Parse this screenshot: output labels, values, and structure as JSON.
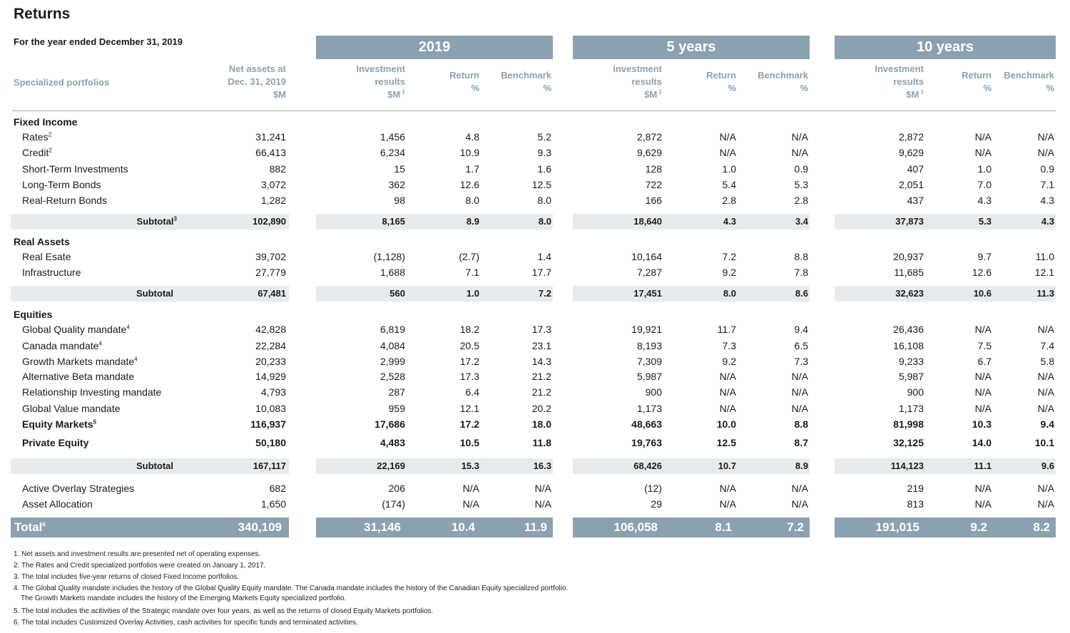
{
  "title": "Returns",
  "period": "For the year ended December 31, 2019",
  "groups": [
    "2019",
    "5 years",
    "10 years"
  ],
  "headers": {
    "portfolio": "Specialized portfolios",
    "net_assets": [
      "Net assets at",
      "Dec. 31, 2019",
      "$M"
    ],
    "inv_results": [
      "Investment",
      "results",
      "$M"
    ],
    "inv_results_sup": "1",
    "return": [
      "Return",
      "%"
    ],
    "benchmark": [
      "Benchmark",
      "%"
    ]
  },
  "sections": {
    "fixed_income": {
      "title": "Fixed Income",
      "rows": [
        {
          "label": "Rates",
          "sup": "2",
          "v": [
            "31,241",
            "1,456",
            "4.8",
            "5.2",
            "2,872",
            "N/A",
            "N/A",
            "2,872",
            "N/A",
            "N/A"
          ]
        },
        {
          "label": "Credit",
          "sup": "2",
          "v": [
            "66,413",
            "6,234",
            "10.9",
            "9.3",
            "9,629",
            "N/A",
            "N/A",
            "9,629",
            "N/A",
            "N/A"
          ]
        },
        {
          "label": "Short-Term Investments",
          "sup": "",
          "v": [
            "882",
            "15",
            "1.7",
            "1.6",
            "128",
            "1.0",
            "0.9",
            "407",
            "1.0",
            "0.9"
          ]
        },
        {
          "label": "Long-Term Bonds",
          "sup": "",
          "v": [
            "3,072",
            "362",
            "12.6",
            "12.5",
            "722",
            "5.4",
            "5.3",
            "2,051",
            "7.0",
            "7.1"
          ]
        },
        {
          "label": "Real-Return Bonds",
          "sup": "",
          "v": [
            "1,282",
            "98",
            "8.0",
            "8.0",
            "166",
            "2.8",
            "2.8",
            "437",
            "4.3",
            "4.3"
          ]
        }
      ],
      "subtotal": {
        "label": "Subtotal",
        "sup": "3",
        "v": [
          "102,890",
          "8,165",
          "8.9",
          "8.0",
          "18,640",
          "4.3",
          "3.4",
          "37,873",
          "5.3",
          "4.3"
        ]
      }
    },
    "real_assets": {
      "title": "Real Assets",
      "rows": [
        {
          "label": "Real Esate",
          "sup": "",
          "v": [
            "39,702",
            "(1,128)",
            "(2.7)",
            "1.4",
            "10,164",
            "7.2",
            "8.8",
            "20,937",
            "9.7",
            "11.0"
          ]
        },
        {
          "label": "Infrastructure",
          "sup": "",
          "v": [
            "27,779",
            "1,688",
            "7.1",
            "17.7",
            "7,287",
            "9.2",
            "7.8",
            "11,685",
            "12.6",
            "12.1"
          ]
        }
      ],
      "subtotal": {
        "label": "Subtotal",
        "sup": "",
        "v": [
          "67,481",
          "560",
          "1.0",
          "7.2",
          "17,451",
          "8.0",
          "8.6",
          "32,623",
          "10.6",
          "11.3"
        ]
      }
    },
    "equities": {
      "title": "Equities",
      "rows": [
        {
          "label": "Global Quality mandate",
          "sup": "4",
          "v": [
            "42,828",
            "6,819",
            "18.2",
            "17.3",
            "19,921",
            "11.7",
            "9.4",
            "26,436",
            "N/A",
            "N/A"
          ]
        },
        {
          "label": "Canada mandate",
          "sup": "4",
          "v": [
            "22,284",
            "4,084",
            "20.5",
            "23.1",
            "8,193",
            "7.3",
            "6.5",
            "16,108",
            "7.5",
            "7.4"
          ]
        },
        {
          "label": "Growth Markets mandate",
          "sup": "4",
          "v": [
            "20,233",
            "2,999",
            "17.2",
            "14.3",
            "7,309",
            "9.2",
            "7.3",
            "9,233",
            "6.7",
            "5.8"
          ]
        },
        {
          "label": "Alternative Beta mandate",
          "sup": "",
          "v": [
            "14,929",
            "2,528",
            "17.3",
            "21.2",
            "5,987",
            "N/A",
            "N/A",
            "5,987",
            "N/A",
            "N/A"
          ]
        },
        {
          "label": "Relationship Investing mandate",
          "sup": "",
          "v": [
            "4,793",
            "287",
            "6.4",
            "21.2",
            "900",
            "N/A",
            "N/A",
            "900",
            "N/A",
            "N/A"
          ]
        },
        {
          "label": "Global Value mandate",
          "sup": "",
          "v": [
            "10,083",
            "959",
            "12.1",
            "20.2",
            "1,173",
            "N/A",
            "N/A",
            "1,173",
            "N/A",
            "N/A"
          ]
        }
      ],
      "equity_markets": {
        "label": "Equity Markets",
        "sup": "5",
        "v": [
          "116,937",
          "17,686",
          "17.2",
          "18.0",
          "48,663",
          "10.0",
          "8.8",
          "81,998",
          "10.3",
          "9.4"
        ]
      },
      "private_equity": {
        "label": "Private Equity",
        "sup": "",
        "v": [
          "50,180",
          "4,483",
          "10.5",
          "11.8",
          "19,763",
          "12.5",
          "8.7",
          "32,125",
          "14.0",
          "10.1"
        ]
      },
      "subtotal": {
        "label": "Subtotal",
        "sup": "",
        "v": [
          "167,117",
          "22,169",
          "15.3",
          "16.3",
          "68,426",
          "10.7",
          "8.9",
          "114,123",
          "11.1",
          "9.6"
        ]
      }
    },
    "other": [
      {
        "label": "Active Overlay Strategies",
        "sup": "",
        "v": [
          "682",
          "206",
          "N/A",
          "N/A",
          "(12)",
          "N/A",
          "N/A",
          "219",
          "N/A",
          "N/A"
        ]
      },
      {
        "label": "Asset Allocation",
        "sup": "",
        "v": [
          "1,650",
          "(174)",
          "N/A",
          "N/A",
          "29",
          "N/A",
          "N/A",
          "813",
          "N/A",
          "N/A"
        ]
      }
    ]
  },
  "total": {
    "label": "Total",
    "sup": "6",
    "v": [
      "340,109",
      "31,146",
      "10.4",
      "11.9",
      "106,058",
      "8.1",
      "7.2",
      "191,015",
      "9.2",
      "8.2"
    ]
  },
  "notes": [
    "1. Net assets and investment results are presented net of operating expenses.",
    "2. The Rates and Credit specialized portfolios were created on January 1, 2017.",
    "3. The total includes five-year returns of closed Fixed Income portfolios.",
    "4. The Global Quality mandate includes the history of the Global Quality Equity mandate. The Canada mandate includes the history of the Canadian Equity specialized portfolio.",
    "The Growth Markets mandate includes the history of the Emerging Markets Equity specialized portfolio.",
    "5. The total includes the acitivities of the Strategic mandate over four years, as well as the returns of closed Equity Markets portfolios.",
    "6. The total includes Customized Overlay Activities, cash activities for specific funds and terminated activities."
  ]
}
